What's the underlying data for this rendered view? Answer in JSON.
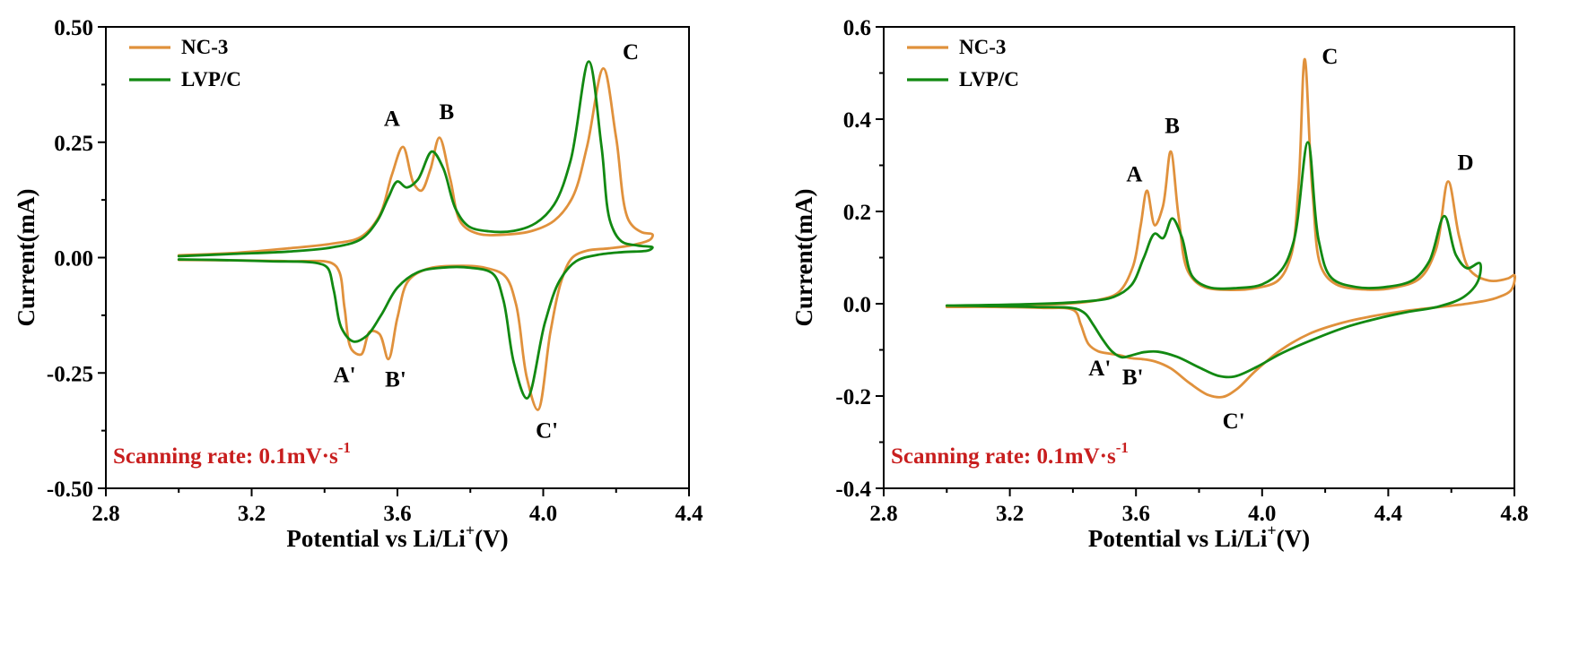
{
  "figure": {
    "background": "#ffffff",
    "note_color": "#c81e1e",
    "axis_color": "#000000"
  },
  "chart_data": [
    {
      "id": "left",
      "type": "line",
      "title": "",
      "xlabel": {
        "base": "Potential vs Li/Li",
        "sup": "+",
        "suffix": "(V)"
      },
      "ylabel": "Current(mA)",
      "xlim": [
        2.8,
        4.4
      ],
      "ylim": [
        -0.5,
        0.5
      ],
      "grid": false,
      "legend_position": "top-left",
      "xticks": [
        {
          "v": 2.8,
          "label": "2.8"
        },
        {
          "v": 3.2,
          "label": "3.2"
        },
        {
          "v": 3.6,
          "label": "3.6"
        },
        {
          "v": 4.0,
          "label": "4.0"
        },
        {
          "v": 4.4,
          "label": "4.4"
        }
      ],
      "yticks": [
        {
          "v": 0.5,
          "label": "0.50"
        },
        {
          "v": 0.25,
          "label": "0.25"
        },
        {
          "v": 0.0,
          "label": "0.00"
        },
        {
          "v": -0.25,
          "label": "-0.25"
        },
        {
          "v": -0.5,
          "label": "-0.50"
        }
      ],
      "legend": [
        {
          "label": "NC-3",
          "color": "#e0913c"
        },
        {
          "label": "LVP/C",
          "color": "#128912"
        }
      ],
      "note": {
        "base": "Scanning rate: 0.1mV·s",
        "sup": "-1",
        "color": "#c81e1e"
      },
      "peak_labels": [
        {
          "text": "A",
          "x": 3.585,
          "y": 0.285
        },
        {
          "text": "B",
          "x": 3.735,
          "y": 0.3
        },
        {
          "text": "C",
          "x": 4.24,
          "y": 0.43
        },
        {
          "text": "A'",
          "x": 3.455,
          "y": -0.27
        },
        {
          "text": "B'",
          "x": 3.595,
          "y": -0.28
        },
        {
          "text": "C'",
          "x": 4.01,
          "y": -0.39
        }
      ],
      "series": [
        {
          "name": "NC-3",
          "color": "#e0913c",
          "points": [
            [
              3.0,
              0.005
            ],
            [
              3.15,
              0.01
            ],
            [
              3.3,
              0.02
            ],
            [
              3.42,
              0.03
            ],
            [
              3.5,
              0.045
            ],
            [
              3.55,
              0.09
            ],
            [
              3.585,
              0.18
            ],
            [
              3.615,
              0.24
            ],
            [
              3.645,
              0.16
            ],
            [
              3.665,
              0.145
            ],
            [
              3.69,
              0.19
            ],
            [
              3.715,
              0.26
            ],
            [
              3.745,
              0.17
            ],
            [
              3.775,
              0.075
            ],
            [
              3.82,
              0.052
            ],
            [
              3.9,
              0.05
            ],
            [
              3.97,
              0.058
            ],
            [
              4.03,
              0.08
            ],
            [
              4.08,
              0.13
            ],
            [
              4.12,
              0.24
            ],
            [
              4.165,
              0.41
            ],
            [
              4.2,
              0.26
            ],
            [
              4.235,
              0.08
            ],
            [
              4.27,
              0.055
            ],
            [
              4.3,
              0.05
            ],
            [
              4.295,
              0.04
            ],
            [
              4.25,
              0.028
            ],
            [
              4.18,
              0.02
            ],
            [
              4.12,
              0.015
            ],
            [
              4.08,
              0.0
            ],
            [
              4.05,
              -0.05
            ],
            [
              4.02,
              -0.16
            ],
            [
              3.985,
              -0.33
            ],
            [
              3.955,
              -0.26
            ],
            [
              3.925,
              -0.1
            ],
            [
              3.895,
              -0.04
            ],
            [
              3.84,
              -0.022
            ],
            [
              3.76,
              -0.018
            ],
            [
              3.68,
              -0.025
            ],
            [
              3.63,
              -0.05
            ],
            [
              3.6,
              -0.13
            ],
            [
              3.575,
              -0.22
            ],
            [
              3.55,
              -0.165
            ],
            [
              3.525,
              -0.16
            ],
            [
              3.5,
              -0.21
            ],
            [
              3.475,
              -0.2
            ],
            [
              3.455,
              -0.11
            ],
            [
              3.44,
              -0.03
            ],
            [
              3.42,
              -0.012
            ],
            [
              3.3,
              -0.008
            ],
            [
              3.15,
              -0.006
            ],
            [
              3.0,
              -0.005
            ]
          ]
        },
        {
          "name": "LVP/C",
          "color": "#128912",
          "points": [
            [
              3.0,
              0.003
            ],
            [
              3.15,
              0.008
            ],
            [
              3.3,
              0.013
            ],
            [
              3.42,
              0.022
            ],
            [
              3.5,
              0.04
            ],
            [
              3.545,
              0.08
            ],
            [
              3.575,
              0.13
            ],
            [
              3.6,
              0.165
            ],
            [
              3.625,
              0.152
            ],
            [
              3.655,
              0.168
            ],
            [
              3.695,
              0.23
            ],
            [
              3.725,
              0.195
            ],
            [
              3.76,
              0.105
            ],
            [
              3.795,
              0.068
            ],
            [
              3.85,
              0.057
            ],
            [
              3.92,
              0.058
            ],
            [
              3.98,
              0.075
            ],
            [
              4.03,
              0.115
            ],
            [
              4.075,
              0.21
            ],
            [
              4.125,
              0.425
            ],
            [
              4.16,
              0.24
            ],
            [
              4.185,
              0.075
            ],
            [
              4.215,
              0.035
            ],
            [
              4.26,
              0.026
            ],
            [
              4.3,
              0.022
            ],
            [
              4.29,
              0.016
            ],
            [
              4.22,
              0.012
            ],
            [
              4.15,
              0.006
            ],
            [
              4.09,
              -0.008
            ],
            [
              4.045,
              -0.05
            ],
            [
              4.005,
              -0.14
            ],
            [
              3.955,
              -0.305
            ],
            [
              3.92,
              -0.23
            ],
            [
              3.89,
              -0.09
            ],
            [
              3.862,
              -0.035
            ],
            [
              3.8,
              -0.022
            ],
            [
              3.72,
              -0.022
            ],
            [
              3.655,
              -0.032
            ],
            [
              3.6,
              -0.065
            ],
            [
              3.555,
              -0.125
            ],
            [
              3.515,
              -0.17
            ],
            [
              3.48,
              -0.182
            ],
            [
              3.448,
              -0.155
            ],
            [
              3.425,
              -0.07
            ],
            [
              3.408,
              -0.022
            ],
            [
              3.38,
              -0.012
            ],
            [
              3.25,
              -0.008
            ],
            [
              3.1,
              -0.005
            ],
            [
              3.0,
              -0.004
            ]
          ]
        }
      ]
    },
    {
      "id": "right",
      "type": "line",
      "title": "",
      "xlabel": {
        "base": "Potential vs Li/Li",
        "sup": "+",
        "suffix": "(V)"
      },
      "ylabel": "Current(mA)",
      "xlim": [
        2.8,
        4.8
      ],
      "ylim": [
        -0.4,
        0.6
      ],
      "grid": false,
      "legend_position": "top-left",
      "xticks": [
        {
          "v": 2.8,
          "label": "2.8"
        },
        {
          "v": 3.2,
          "label": "3.2"
        },
        {
          "v": 3.6,
          "label": "3.6"
        },
        {
          "v": 4.0,
          "label": "4.0"
        },
        {
          "v": 4.4,
          "label": "4.4"
        },
        {
          "v": 4.8,
          "label": "4.8"
        }
      ],
      "yticks": [
        {
          "v": 0.6,
          "label": "0.6"
        },
        {
          "v": 0.4,
          "label": "0.4"
        },
        {
          "v": 0.2,
          "label": "0.2"
        },
        {
          "v": 0.0,
          "label": "0.0"
        },
        {
          "v": -0.2,
          "label": "-0.2"
        },
        {
          "v": -0.4,
          "label": "-0.4"
        }
      ],
      "legend": [
        {
          "label": "NC-3",
          "color": "#e0913c"
        },
        {
          "label": "LVP/C",
          "color": "#128912"
        }
      ],
      "note": {
        "base": "Scanning rate: 0.1mV·s",
        "sup": "-1",
        "color": "#c81e1e"
      },
      "peak_labels": [
        {
          "text": "A",
          "x": 3.595,
          "y": 0.265
        },
        {
          "text": "B",
          "x": 3.715,
          "y": 0.37
        },
        {
          "text": "C",
          "x": 4.215,
          "y": 0.52
        },
        {
          "text": "D",
          "x": 4.645,
          "y": 0.29
        },
        {
          "text": "A'",
          "x": 3.485,
          "y": -0.155
        },
        {
          "text": "B'",
          "x": 3.59,
          "y": -0.175
        },
        {
          "text": "C'",
          "x": 3.91,
          "y": -0.27
        }
      ],
      "series": [
        {
          "name": "NC-3",
          "color": "#e0913c",
          "points": [
            [
              3.0,
              -0.005
            ],
            [
              3.2,
              -0.003
            ],
            [
              3.38,
              0.0
            ],
            [
              3.48,
              0.008
            ],
            [
              3.545,
              0.025
            ],
            [
              3.59,
              0.08
            ],
            [
              3.615,
              0.17
            ],
            [
              3.635,
              0.245
            ],
            [
              3.66,
              0.17
            ],
            [
              3.685,
              0.21
            ],
            [
              3.71,
              0.33
            ],
            [
              3.735,
              0.19
            ],
            [
              3.765,
              0.07
            ],
            [
              3.81,
              0.038
            ],
            [
              3.9,
              0.03
            ],
            [
              3.98,
              0.034
            ],
            [
              4.05,
              0.05
            ],
            [
              4.09,
              0.1
            ],
            [
              4.115,
              0.25
            ],
            [
              4.135,
              0.53
            ],
            [
              4.16,
              0.24
            ],
            [
              4.19,
              0.075
            ],
            [
              4.235,
              0.042
            ],
            [
              4.32,
              0.031
            ],
            [
              4.42,
              0.035
            ],
            [
              4.5,
              0.055
            ],
            [
              4.55,
              0.115
            ],
            [
              4.59,
              0.265
            ],
            [
              4.625,
              0.145
            ],
            [
              4.66,
              0.072
            ],
            [
              4.72,
              0.05
            ],
            [
              4.78,
              0.055
            ],
            [
              4.8,
              0.062
            ],
            [
              4.79,
              0.03
            ],
            [
              4.74,
              0.012
            ],
            [
              4.65,
              0.0
            ],
            [
              4.55,
              -0.008
            ],
            [
              4.45,
              -0.016
            ],
            [
              4.35,
              -0.027
            ],
            [
              4.25,
              -0.042
            ],
            [
              4.15,
              -0.065
            ],
            [
              4.06,
              -0.1
            ],
            [
              3.98,
              -0.145
            ],
            [
              3.92,
              -0.185
            ],
            [
              3.875,
              -0.202
            ],
            [
              3.83,
              -0.198
            ],
            [
              3.77,
              -0.172
            ],
            [
              3.71,
              -0.14
            ],
            [
              3.66,
              -0.125
            ],
            [
              3.62,
              -0.12
            ],
            [
              3.585,
              -0.118
            ],
            [
              3.55,
              -0.112
            ],
            [
              3.515,
              -0.108
            ],
            [
              3.48,
              -0.103
            ],
            [
              3.45,
              -0.088
            ],
            [
              3.425,
              -0.045
            ],
            [
              3.405,
              -0.015
            ],
            [
              3.3,
              -0.009
            ],
            [
              3.15,
              -0.007
            ],
            [
              3.0,
              -0.007
            ]
          ]
        },
        {
          "name": "LVP/C",
          "color": "#128912",
          "points": [
            [
              3.0,
              -0.004
            ],
            [
              3.25,
              -0.001
            ],
            [
              3.42,
              0.004
            ],
            [
              3.53,
              0.015
            ],
            [
              3.585,
              0.04
            ],
            [
              3.625,
              0.1
            ],
            [
              3.66,
              0.152
            ],
            [
              3.685,
              0.142
            ],
            [
              3.715,
              0.185
            ],
            [
              3.745,
              0.145
            ],
            [
              3.78,
              0.058
            ],
            [
              3.83,
              0.036
            ],
            [
              3.92,
              0.034
            ],
            [
              4.0,
              0.042
            ],
            [
              4.06,
              0.072
            ],
            [
              4.1,
              0.135
            ],
            [
              4.145,
              0.35
            ],
            [
              4.18,
              0.135
            ],
            [
              4.22,
              0.056
            ],
            [
              4.3,
              0.036
            ],
            [
              4.4,
              0.037
            ],
            [
              4.48,
              0.052
            ],
            [
              4.53,
              0.092
            ],
            [
              4.578,
              0.19
            ],
            [
              4.615,
              0.105
            ],
            [
              4.65,
              0.077
            ],
            [
              4.69,
              0.088
            ],
            [
              4.685,
              0.05
            ],
            [
              4.64,
              0.015
            ],
            [
              4.56,
              -0.006
            ],
            [
              4.46,
              -0.018
            ],
            [
              4.36,
              -0.033
            ],
            [
              4.26,
              -0.052
            ],
            [
              4.16,
              -0.078
            ],
            [
              4.06,
              -0.108
            ],
            [
              3.98,
              -0.138
            ],
            [
              3.91,
              -0.158
            ],
            [
              3.86,
              -0.156
            ],
            [
              3.8,
              -0.138
            ],
            [
              3.73,
              -0.115
            ],
            [
              3.67,
              -0.104
            ],
            [
              3.625,
              -0.105
            ],
            [
              3.585,
              -0.112
            ],
            [
              3.555,
              -0.116
            ],
            [
              3.525,
              -0.104
            ],
            [
              3.495,
              -0.078
            ],
            [
              3.465,
              -0.046
            ],
            [
              3.44,
              -0.022
            ],
            [
              3.41,
              -0.011
            ],
            [
              3.28,
              -0.007
            ],
            [
              3.12,
              -0.005
            ],
            [
              3.0,
              -0.004
            ]
          ]
        }
      ]
    }
  ]
}
